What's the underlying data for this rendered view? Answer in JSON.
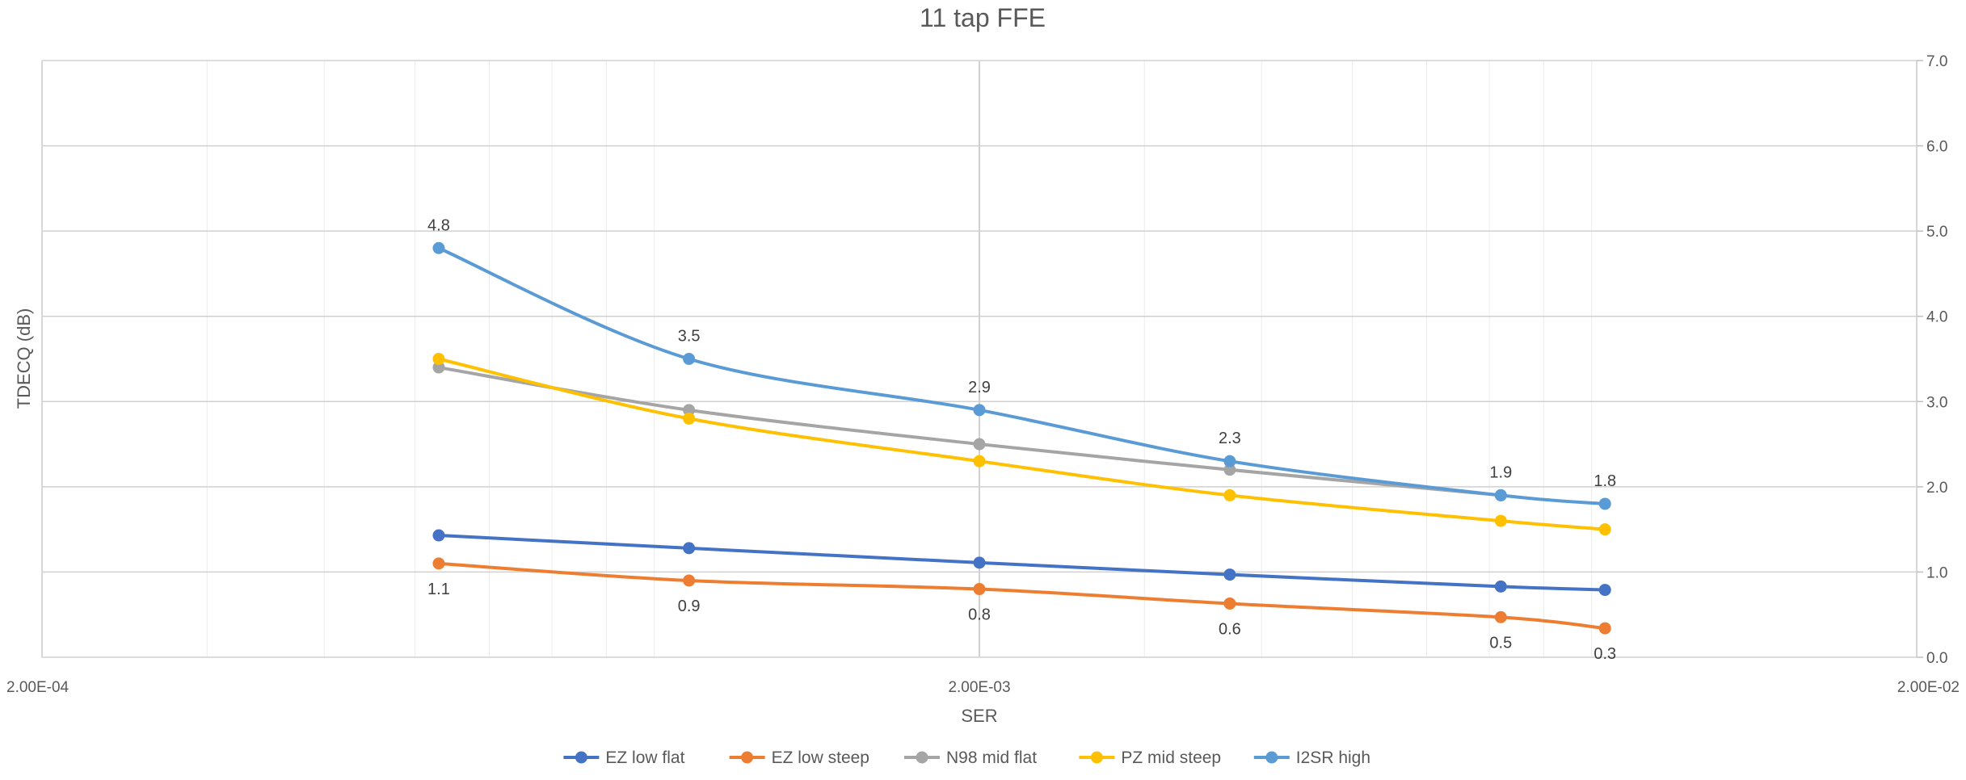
{
  "chart_data": {
    "type": "line",
    "title": "11 tap FFE",
    "xlabel": "SER",
    "ylabel": "TDECQ (dB)",
    "x_scale": "log",
    "xlim": [
      0.0002,
      0.02
    ],
    "ylim": [
      0,
      7
    ],
    "x_ticks": [
      "2.00E-04",
      "2.00E-03",
      "2.00E-02"
    ],
    "y_ticks": [
      "0.0",
      "1.0",
      "2.0",
      "3.0",
      "4.0",
      "5.0",
      "6.0",
      "7.0"
    ],
    "y_axis_side": "right",
    "grid": true,
    "legend_position": "bottom",
    "series": [
      {
        "name": "EZ low flat",
        "color": "#4472C4",
        "x": [
          0.00053,
          0.00098,
          0.002,
          0.0037,
          0.0072,
          0.0093
        ],
        "values": [
          1.43,
          1.28,
          1.11,
          0.97,
          0.83,
          0.79
        ],
        "labels": [
          null,
          null,
          null,
          null,
          null,
          null
        ],
        "label_position": "above"
      },
      {
        "name": "EZ low steep",
        "color": "#ED7D31",
        "x": [
          0.00053,
          0.00098,
          0.002,
          0.0037,
          0.0072,
          0.0093
        ],
        "values": [
          1.1,
          0.9,
          0.8,
          0.63,
          0.47,
          0.34
        ],
        "labels": [
          "1.1",
          "0.9",
          "0.8",
          "0.6",
          "0.5",
          "0.3"
        ],
        "label_position": "below"
      },
      {
        "name": "N98 mid flat",
        "color": "#A5A5A5",
        "x": [
          0.00053,
          0.00098,
          0.002,
          0.0037,
          0.0072
        ],
        "values": [
          3.4,
          2.9,
          2.5,
          2.2,
          1.9
        ],
        "labels": [
          null,
          null,
          null,
          null,
          null
        ],
        "label_position": "above"
      },
      {
        "name": "PZ mid steep",
        "color": "#FFC000",
        "x": [
          0.00053,
          0.00098,
          0.002,
          0.0037,
          0.0072,
          0.0093
        ],
        "values": [
          3.5,
          2.8,
          2.3,
          1.9,
          1.6,
          1.5
        ],
        "labels": [
          null,
          null,
          null,
          null,
          null,
          null
        ],
        "label_position": "above"
      },
      {
        "name": "I2SR high",
        "color": "#5B9BD5",
        "x": [
          0.00053,
          0.00098,
          0.002,
          0.0037,
          0.0072,
          0.0093
        ],
        "values": [
          4.8,
          3.5,
          2.9,
          2.3,
          1.9,
          1.8
        ],
        "labels": [
          "4.8",
          "3.5",
          "2.9",
          "2.3",
          "1.9",
          "1.8"
        ],
        "label_position": "above"
      }
    ]
  }
}
